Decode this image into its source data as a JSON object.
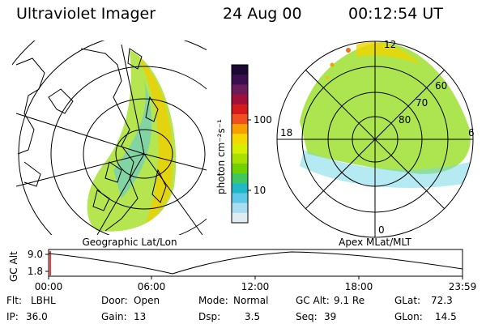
{
  "header": {
    "title": "Ultraviolet Imager",
    "date": "24 Aug 00",
    "time": "00:12:54 UT"
  },
  "colorbar": {
    "label": "photon cm⁻²s⁻¹",
    "ticks": [
      "100",
      "10"
    ],
    "colors": [
      "#1a0a33",
      "#3b0f4f",
      "#6a1b5a",
      "#a0103a",
      "#d41a1a",
      "#f05020",
      "#f7a000",
      "#f6d800",
      "#d8ee00",
      "#a8e000",
      "#70d000",
      "#40c860",
      "#20b8c8",
      "#60c8e8",
      "#a8dcf0",
      "#e0ecf0"
    ]
  },
  "left_panel": {
    "caption": "Geographic Lat/Lon"
  },
  "right_panel": {
    "caption": "Apex MLat/MLT",
    "mlt_labels": {
      "top": "12",
      "left": "18",
      "right": "6",
      "bottom": "0"
    },
    "lat_labels": [
      "60",
      "70",
      "80"
    ]
  },
  "altitude_strip": {
    "axis_label": "GC Alt",
    "y_ticks": [
      "9.0",
      "1.8"
    ],
    "x_ticks": [
      "00:00",
      "06:00",
      "12:00",
      "18:00",
      "23:59"
    ]
  },
  "info": {
    "row1": [
      {
        "label": "Flt:",
        "value": "LBHL"
      },
      {
        "label": "Door:",
        "value": "Open"
      },
      {
        "label": "Mode:",
        "value": "Normal"
      },
      {
        "label": "GC Alt:",
        "value": "9.1 Re"
      },
      {
        "label": "GLat:",
        "value": "72.3"
      }
    ],
    "row2": [
      {
        "label": "IP:",
        "value": "36.0"
      },
      {
        "label": "Gain:",
        "value": "13"
      },
      {
        "label": "Dsp:",
        "value": "3.5"
      },
      {
        "label": "Seq:",
        "value": "39"
      },
      {
        "label": "GLon:",
        "value": "14.5"
      }
    ]
  }
}
